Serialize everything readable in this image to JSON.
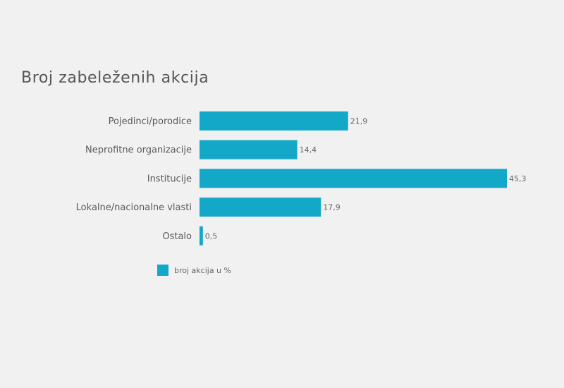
{
  "title": "Broj zabeleženih akcija",
  "colors": {
    "bar": "#14a8c8",
    "background": "#f1f1f1"
  },
  "chart_data": {
    "type": "bar",
    "orientation": "horizontal",
    "categories": [
      "Pojedinci/porodice",
      "Neprofitne organizacije",
      "Institucije",
      "Lokalne/nacionalne vlasti",
      "Ostalo"
    ],
    "value_labels": [
      "21,9",
      "14,4",
      "45,3",
      "17,9",
      "0,5"
    ],
    "series": [
      {
        "name": "broj akcija u %",
        "values": [
          21.9,
          14.4,
          45.3,
          17.9,
          0.5
        ]
      }
    ],
    "xlim": [
      0,
      45.3
    ],
    "grid": false,
    "legend_position": "bottom-left"
  }
}
